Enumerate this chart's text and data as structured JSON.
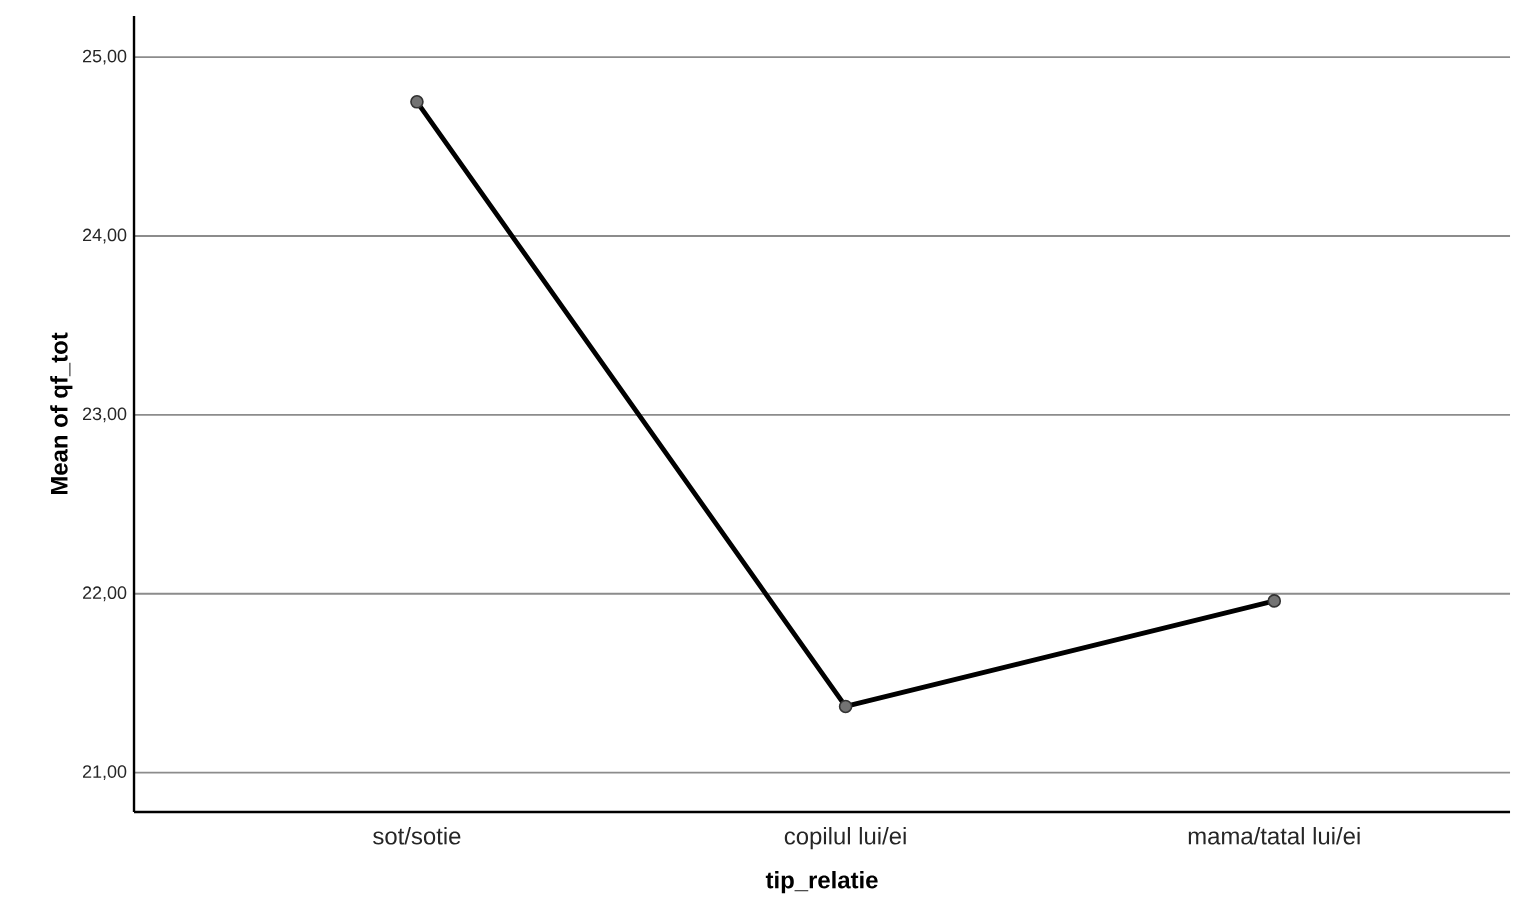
{
  "chart_data": {
    "type": "line",
    "xlabel": "tip_relatie",
    "ylabel": "Mean of qf_tot",
    "categories": [
      "sot/sotie",
      "copilul lui/ei",
      "mama/tatal lui/ei"
    ],
    "series": [
      {
        "color": "#000000",
        "values": [
          24.75,
          21.37,
          21.96
        ]
      }
    ],
    "ylim": [
      20.78,
      25.23
    ],
    "yticks": [
      {
        "value": 21,
        "label": "21,00"
      },
      {
        "value": 22,
        "label": "22,00"
      },
      {
        "value": 23,
        "label": "23,00"
      },
      {
        "value": 24,
        "label": "24,00"
      },
      {
        "value": 25,
        "label": "25,00"
      }
    ],
    "grid": "y",
    "marker": "circle",
    "line_style": "solid"
  }
}
